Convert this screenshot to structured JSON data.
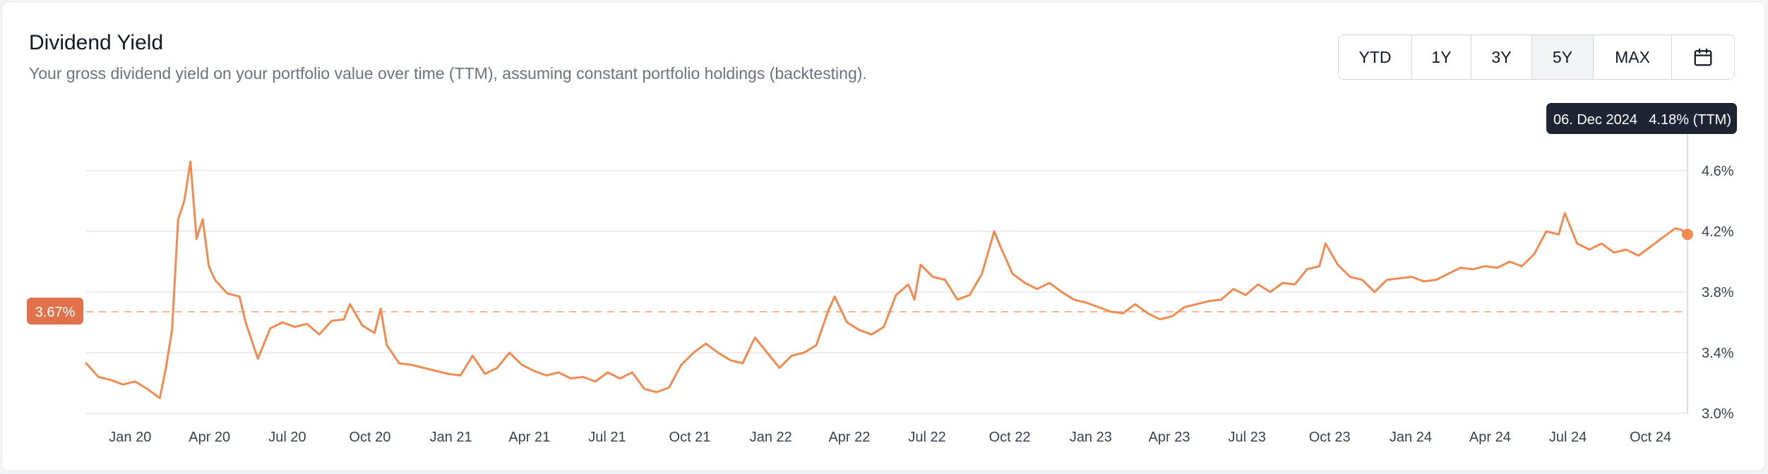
{
  "header": {
    "title": "Dividend Yield",
    "subtitle": "Your gross dividend yield on your portfolio value over time (TTM), assuming constant portfolio holdings (backtesting)."
  },
  "range_selector": {
    "buttons": [
      {
        "label": "YTD",
        "active": false
      },
      {
        "label": "1Y",
        "active": false
      },
      {
        "label": "3Y",
        "active": false
      },
      {
        "label": "5Y",
        "active": true
      },
      {
        "label": "MAX",
        "active": false
      }
    ],
    "calendar_icon": "calendar-icon"
  },
  "colors": {
    "line": "#f28b50",
    "average_badge": "#e0714a",
    "tooltip_bg": "#1e2433",
    "grid": "#e5e7eb"
  },
  "tooltip": {
    "date": "06. Dec 2024",
    "value": "4.18% (TTM)"
  },
  "average_badge": {
    "label": "3.67%",
    "value": 3.67
  },
  "chart_data": {
    "type": "line",
    "title": "Dividend Yield",
    "xlabel": "",
    "ylabel": "",
    "ylim": [
      3.0,
      4.6
    ],
    "y_ticks": [
      {
        "value": 3.0,
        "label": "3.0%"
      },
      {
        "value": 3.4,
        "label": "3.4%"
      },
      {
        "value": 3.8,
        "label": "3.8%"
      },
      {
        "value": 4.2,
        "label": "4.2%"
      },
      {
        "value": 4.6,
        "label": "4.6%"
      }
    ],
    "xlim": [
      "2019-12-06",
      "2024-12-06"
    ],
    "x_ticks": [
      {
        "date": "2020-01-01",
        "label": "Jan 20"
      },
      {
        "date": "2020-04-01",
        "label": "Apr 20"
      },
      {
        "date": "2020-07-01",
        "label": "Jul 20"
      },
      {
        "date": "2020-10-01",
        "label": "Oct 20"
      },
      {
        "date": "2021-01-01",
        "label": "Jan 21"
      },
      {
        "date": "2021-04-01",
        "label": "Apr 21"
      },
      {
        "date": "2021-07-01",
        "label": "Jul 21"
      },
      {
        "date": "2021-10-01",
        "label": "Oct 21"
      },
      {
        "date": "2022-01-01",
        "label": "Jan 22"
      },
      {
        "date": "2022-04-01",
        "label": "Apr 22"
      },
      {
        "date": "2022-07-01",
        "label": "Jul 22"
      },
      {
        "date": "2022-10-01",
        "label": "Oct 22"
      },
      {
        "date": "2023-01-01",
        "label": "Jan 23"
      },
      {
        "date": "2023-04-01",
        "label": "Apr 23"
      },
      {
        "date": "2023-07-01",
        "label": "Jul 23"
      },
      {
        "date": "2023-10-01",
        "label": "Oct 23"
      },
      {
        "date": "2024-01-01",
        "label": "Jan 24"
      },
      {
        "date": "2024-04-01",
        "label": "Apr 24"
      },
      {
        "date": "2024-07-01",
        "label": "Jul 24"
      },
      {
        "date": "2024-10-01",
        "label": "Oct 24"
      }
    ],
    "average": 3.67,
    "grid": true,
    "series": [
      {
        "points": [
          [
            "2019-12-06",
            3.33
          ],
          [
            "2019-12-20",
            3.24
          ],
          [
            "2020-01-03",
            3.22
          ],
          [
            "2020-01-17",
            3.19
          ],
          [
            "2020-01-31",
            3.21
          ],
          [
            "2020-02-14",
            3.16
          ],
          [
            "2020-02-28",
            3.1
          ],
          [
            "2020-03-06",
            3.3
          ],
          [
            "2020-03-13",
            3.55
          ],
          [
            "2020-03-20",
            4.28
          ],
          [
            "2020-03-27",
            4.4
          ],
          [
            "2020-04-03",
            4.66
          ],
          [
            "2020-04-10",
            4.15
          ],
          [
            "2020-04-17",
            4.28
          ],
          [
            "2020-04-24",
            3.97
          ],
          [
            "2020-05-01",
            3.88
          ],
          [
            "2020-05-15",
            3.79
          ],
          [
            "2020-05-29",
            3.77
          ],
          [
            "2020-06-05",
            3.6
          ],
          [
            "2020-06-19",
            3.36
          ],
          [
            "2020-07-03",
            3.56
          ],
          [
            "2020-07-17",
            3.6
          ],
          [
            "2020-07-31",
            3.57
          ],
          [
            "2020-08-14",
            3.59
          ],
          [
            "2020-08-28",
            3.52
          ],
          [
            "2020-09-11",
            3.61
          ],
          [
            "2020-09-25",
            3.62
          ],
          [
            "2020-10-02",
            3.72
          ],
          [
            "2020-10-16",
            3.58
          ],
          [
            "2020-10-30",
            3.53
          ],
          [
            "2020-11-06",
            3.69
          ],
          [
            "2020-11-13",
            3.45
          ],
          [
            "2020-11-27",
            3.33
          ],
          [
            "2020-12-11",
            3.32
          ],
          [
            "2020-12-25",
            3.3
          ],
          [
            "2021-01-08",
            3.28
          ],
          [
            "2021-01-22",
            3.26
          ],
          [
            "2021-02-05",
            3.25
          ],
          [
            "2021-02-19",
            3.38
          ],
          [
            "2021-03-05",
            3.26
          ],
          [
            "2021-03-19",
            3.3
          ],
          [
            "2021-04-02",
            3.4
          ],
          [
            "2021-04-16",
            3.32
          ],
          [
            "2021-04-30",
            3.28
          ],
          [
            "2021-05-14",
            3.25
          ],
          [
            "2021-05-28",
            3.27
          ],
          [
            "2021-06-11",
            3.23
          ],
          [
            "2021-06-25",
            3.24
          ],
          [
            "2021-07-09",
            3.21
          ],
          [
            "2021-07-23",
            3.27
          ],
          [
            "2021-08-06",
            3.23
          ],
          [
            "2021-08-20",
            3.27
          ],
          [
            "2021-09-03",
            3.16
          ],
          [
            "2021-09-17",
            3.14
          ],
          [
            "2021-10-01",
            3.17
          ],
          [
            "2021-10-15",
            3.32
          ],
          [
            "2021-10-29",
            3.4
          ],
          [
            "2021-11-12",
            3.46
          ],
          [
            "2021-11-26",
            3.4
          ],
          [
            "2021-12-10",
            3.35
          ],
          [
            "2021-12-24",
            3.33
          ],
          [
            "2022-01-07",
            3.5
          ],
          [
            "2022-01-21",
            3.4
          ],
          [
            "2022-02-04",
            3.3
          ],
          [
            "2022-02-18",
            3.38
          ],
          [
            "2022-03-04",
            3.4
          ],
          [
            "2022-03-18",
            3.45
          ],
          [
            "2022-04-01",
            3.68
          ],
          [
            "2022-04-08",
            3.77
          ],
          [
            "2022-04-22",
            3.6
          ],
          [
            "2022-05-06",
            3.55
          ],
          [
            "2022-05-20",
            3.52
          ],
          [
            "2022-06-03",
            3.57
          ],
          [
            "2022-06-17",
            3.78
          ],
          [
            "2022-07-01",
            3.85
          ],
          [
            "2022-07-08",
            3.75
          ],
          [
            "2022-07-15",
            3.98
          ],
          [
            "2022-07-29",
            3.9
          ],
          [
            "2022-08-12",
            3.88
          ],
          [
            "2022-08-26",
            3.75
          ],
          [
            "2022-09-09",
            3.78
          ],
          [
            "2022-09-23",
            3.92
          ],
          [
            "2022-10-07",
            4.2
          ],
          [
            "2022-10-14",
            4.1
          ],
          [
            "2022-10-28",
            3.92
          ],
          [
            "2022-11-11",
            3.86
          ],
          [
            "2022-11-25",
            3.82
          ],
          [
            "2022-12-09",
            3.86
          ],
          [
            "2022-12-23",
            3.8
          ],
          [
            "2023-01-06",
            3.75
          ],
          [
            "2023-01-20",
            3.73
          ],
          [
            "2023-02-03",
            3.7
          ],
          [
            "2023-02-17",
            3.67
          ],
          [
            "2023-03-03",
            3.66
          ],
          [
            "2023-03-17",
            3.72
          ],
          [
            "2023-03-31",
            3.66
          ],
          [
            "2023-04-14",
            3.62
          ],
          [
            "2023-04-28",
            3.64
          ],
          [
            "2023-05-12",
            3.7
          ],
          [
            "2023-05-26",
            3.72
          ],
          [
            "2023-06-09",
            3.74
          ],
          [
            "2023-06-23",
            3.75
          ],
          [
            "2023-07-07",
            3.82
          ],
          [
            "2023-07-21",
            3.78
          ],
          [
            "2023-08-04",
            3.85
          ],
          [
            "2023-08-18",
            3.8
          ],
          [
            "2023-09-01",
            3.86
          ],
          [
            "2023-09-15",
            3.85
          ],
          [
            "2023-09-29",
            3.95
          ],
          [
            "2023-10-13",
            3.97
          ],
          [
            "2023-10-20",
            4.12
          ],
          [
            "2023-11-03",
            3.98
          ],
          [
            "2023-11-17",
            3.9
          ],
          [
            "2023-12-01",
            3.88
          ],
          [
            "2023-12-15",
            3.8
          ],
          [
            "2023-12-29",
            3.88
          ],
          [
            "2024-01-12",
            3.89
          ],
          [
            "2024-01-26",
            3.9
          ],
          [
            "2024-02-09",
            3.87
          ],
          [
            "2024-02-23",
            3.88
          ],
          [
            "2024-03-08",
            3.92
          ],
          [
            "2024-03-22",
            3.96
          ],
          [
            "2024-04-05",
            3.95
          ],
          [
            "2024-04-19",
            3.97
          ],
          [
            "2024-05-03",
            3.96
          ],
          [
            "2024-05-17",
            4.0
          ],
          [
            "2024-05-31",
            3.97
          ],
          [
            "2024-06-14",
            4.05
          ],
          [
            "2024-06-28",
            4.2
          ],
          [
            "2024-07-12",
            4.18
          ],
          [
            "2024-07-19",
            4.32
          ],
          [
            "2024-08-02",
            4.12
          ],
          [
            "2024-08-16",
            4.08
          ],
          [
            "2024-08-30",
            4.12
          ],
          [
            "2024-09-13",
            4.06
          ],
          [
            "2024-09-27",
            4.08
          ],
          [
            "2024-10-11",
            4.04
          ],
          [
            "2024-10-25",
            4.1
          ],
          [
            "2024-11-08",
            4.16
          ],
          [
            "2024-11-22",
            4.22
          ],
          [
            "2024-11-29",
            4.21
          ],
          [
            "2024-12-06",
            4.18
          ]
        ]
      }
    ]
  }
}
